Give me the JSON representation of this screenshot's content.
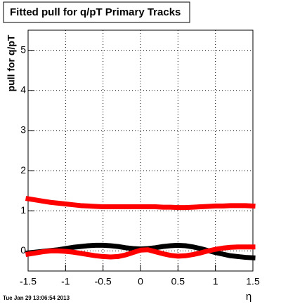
{
  "chart_data": {
    "type": "line",
    "title": "Fitted pull for q/pT  Primary Tracks",
    "y_label": "pull for q/pT",
    "x_label": "η",
    "footer": "Tue Jan 29 13:06:54 2013",
    "x": [
      -1.5,
      -1.4,
      -1.3,
      -1.2,
      -1.1,
      -1.0,
      -0.9,
      -0.8,
      -0.7,
      -0.6,
      -0.5,
      -0.4,
      -0.3,
      -0.2,
      -0.1,
      0,
      0.1,
      0.2,
      0.3,
      0.4,
      0.5,
      0.6,
      0.7,
      0.8,
      0.9,
      1.0,
      1.1,
      1.2,
      1.3,
      1.4,
      1.5
    ],
    "series": [
      {
        "color": "#ff0000",
        "values": [
          1.3,
          1.27,
          1.24,
          1.21,
          1.19,
          1.17,
          1.15,
          1.13,
          1.12,
          1.11,
          1.1,
          1.1,
          1.1,
          1.1,
          1.1,
          1.1,
          1.1,
          1.1,
          1.09,
          1.09,
          1.08,
          1.08,
          1.09,
          1.1,
          1.11,
          1.12,
          1.12,
          1.13,
          1.13,
          1.13,
          1.12
        ]
      },
      {
        "color": "#000000",
        "values": [
          -0.05,
          -0.03,
          -0.01,
          0.01,
          0.03,
          0.06,
          0.09,
          0.11,
          0.13,
          0.14,
          0.14,
          0.13,
          0.11,
          0.08,
          0.06,
          0.05,
          0.06,
          0.08,
          0.11,
          0.13,
          0.14,
          0.13,
          0.1,
          0.06,
          0.01,
          -0.04,
          -0.08,
          -0.12,
          -0.14,
          -0.16,
          -0.17
        ]
      },
      {
        "color": "#ff0000",
        "values": [
          -0.08,
          -0.05,
          -0.02,
          0.0,
          0.0,
          -0.01,
          -0.03,
          -0.06,
          -0.09,
          -0.12,
          -0.14,
          -0.15,
          -0.14,
          -0.1,
          -0.04,
          0.02,
          0.03,
          -0.02,
          -0.07,
          -0.11,
          -0.13,
          -0.12,
          -0.09,
          -0.05,
          0.0,
          0.04,
          0.07,
          0.09,
          0.1,
          0.1,
          0.1
        ]
      }
    ],
    "xlim": [
      -1.5,
      1.5
    ],
    "ylim": [
      -0.5,
      5.5
    ],
    "xticks": [
      -1.5,
      -1,
      -0.5,
      0,
      0.5,
      1,
      1.5
    ],
    "yticks": [
      0,
      1,
      2,
      3,
      4,
      5
    ],
    "grid": true
  }
}
